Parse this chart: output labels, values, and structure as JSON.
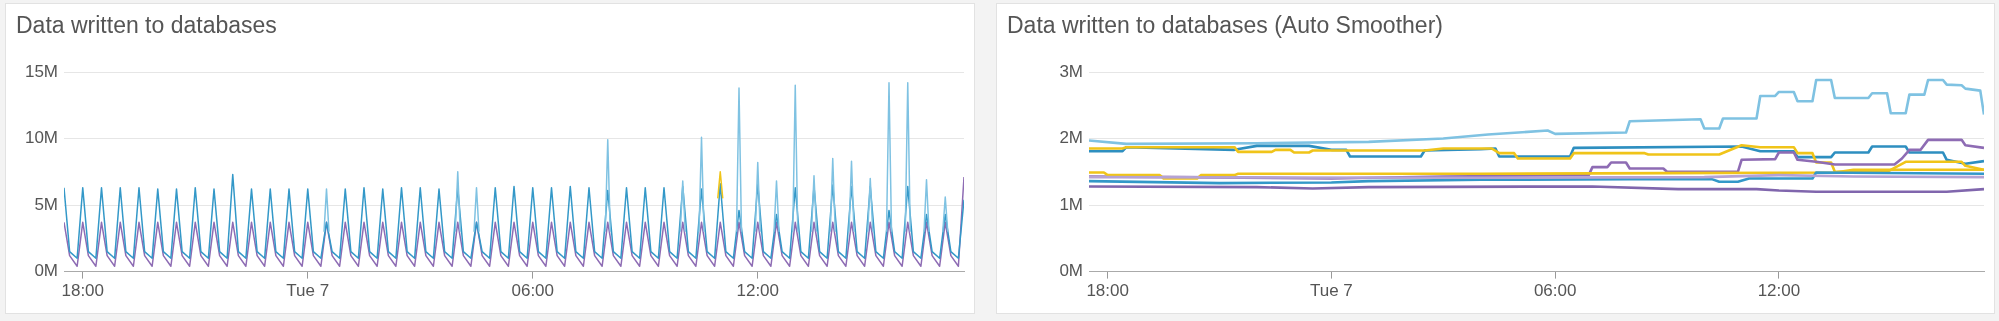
{
  "chart_data": [
    {
      "type": "line",
      "title": "Data written to databases",
      "xlim": [
        "--11-06T17:30",
        "--11-07T17:30"
      ],
      "xticks": [
        {
          "value": "--11-06T18:00",
          "label": "18:00"
        },
        {
          "value": "--11-07T00:00",
          "label": "Tue 7"
        },
        {
          "value": "--11-07T06:00",
          "label": "06:00"
        },
        {
          "value": "--11-07T12:00",
          "label": "12:00"
        }
      ],
      "ylim": [
        0,
        15
      ],
      "yticks": [
        {
          "value": 0,
          "label": "0M"
        },
        {
          "value": 5,
          "label": "5M"
        },
        {
          "value": 10,
          "label": "10M"
        },
        {
          "value": 15,
          "label": "15M"
        }
      ],
      "grid": "y",
      "x": [
        "--11-06T17:30",
        "--11-06T17:39",
        "--11-06T17:51",
        "--11-06T18:00",
        "--11-06T18:09",
        "--11-06T18:21",
        "--11-06T18:30",
        "--11-06T18:39",
        "--11-06T18:51",
        "--11-06T19:00",
        "--11-06T19:09",
        "--11-06T19:21",
        "--11-06T19:30",
        "--11-06T19:39",
        "--11-06T19:51",
        "--11-06T20:00",
        "--11-06T20:09",
        "--11-06T20:21",
        "--11-06T20:30",
        "--11-06T20:39",
        "--11-06T20:51",
        "--11-06T21:00",
        "--11-06T21:09",
        "--11-06T21:21",
        "--11-06T21:30",
        "--11-06T21:39",
        "--11-06T21:51",
        "--11-06T22:00",
        "--11-06T22:09",
        "--11-06T22:21",
        "--11-06T22:30",
        "--11-06T22:39",
        "--11-06T22:51",
        "--11-06T23:00",
        "--11-06T23:09",
        "--11-06T23:21",
        "--11-06T23:30",
        "--11-06T23:39",
        "--11-06T23:51",
        "--11-07T00:00",
        "--11-07T00:09",
        "--11-07T00:21",
        "--11-07T00:30",
        "--11-07T00:39",
        "--11-07T00:51",
        "--11-07T01:00",
        "--11-07T01:09",
        "--11-07T01:21",
        "--11-07T01:30",
        "--11-07T01:39",
        "--11-07T01:51",
        "--11-07T02:00",
        "--11-07T02:09",
        "--11-07T02:21",
        "--11-07T02:30",
        "--11-07T02:39",
        "--11-07T02:51",
        "--11-07T03:00",
        "--11-07T03:09",
        "--11-07T03:21",
        "--11-07T03:30",
        "--11-07T03:39",
        "--11-07T03:51",
        "--11-07T04:00",
        "--11-07T04:09",
        "--11-07T04:21",
        "--11-07T04:30",
        "--11-07T04:39",
        "--11-07T04:51",
        "--11-07T05:00",
        "--11-07T05:09",
        "--11-07T05:21",
        "--11-07T05:30",
        "--11-07T05:39",
        "--11-07T05:51",
        "--11-07T06:00",
        "--11-07T06:09",
        "--11-07T06:21",
        "--11-07T06:30",
        "--11-07T06:39",
        "--11-07T06:51",
        "--11-07T07:00",
        "--11-07T07:09",
        "--11-07T07:21",
        "--11-07T07:30",
        "--11-07T07:39",
        "--11-07T07:51",
        "--11-07T08:00",
        "--11-07T08:09",
        "--11-07T08:21",
        "--11-07T08:30",
        "--11-07T08:39",
        "--11-07T08:51",
        "--11-07T09:00",
        "--11-07T09:09",
        "--11-07T09:21",
        "--11-07T09:30",
        "--11-07T09:39",
        "--11-07T09:51",
        "--11-07T10:00",
        "--11-07T10:09",
        "--11-07T10:21",
        "--11-07T10:30",
        "--11-07T10:39",
        "--11-07T10:51",
        "--11-07T11:00",
        "--11-07T11:09",
        "--11-07T11:21",
        "--11-07T11:30",
        "--11-07T11:39",
        "--11-07T11:51",
        "--11-07T12:00",
        "--11-07T12:09",
        "--11-07T12:21",
        "--11-07T12:30",
        "--11-07T12:39",
        "--11-07T12:51",
        "--11-07T13:00",
        "--11-07T13:09",
        "--11-07T13:21",
        "--11-07T13:30",
        "--11-07T13:39",
        "--11-07T13:51",
        "--11-07T14:00",
        "--11-07T14:09",
        "--11-07T14:21",
        "--11-07T14:30",
        "--11-07T14:39",
        "--11-07T14:51",
        "--11-07T15:00",
        "--11-07T15:09",
        "--11-07T15:21",
        "--11-07T15:30",
        "--11-07T15:39",
        "--11-07T15:51",
        "--11-07T16:00",
        "--11-07T16:09",
        "--11-07T16:21",
        "--11-07T16:30",
        "--11-07T16:39",
        "--11-07T16:51",
        "--11-07T17:00",
        "--11-07T17:09",
        "--11-07T17:21",
        "--11-07T17:30"
      ],
      "series": [
        {
          "color": "#7fc2e2",
          "x": [
            "--11-07T00:26",
            "--11-07T00:30",
            "--11-07T00:34",
            "--11-07T00:45",
            "--11-07T03:56",
            "--11-07T04:00",
            "--11-07T04:04",
            "--11-07T04:15",
            "--11-07T04:26",
            "--11-07T04:30",
            "--11-07T04:34",
            "--11-07T04:45",
            "--11-07T07:56",
            "--11-07T08:00",
            "--11-07T08:04",
            "--11-07T08:15",
            "--11-07T09:56",
            "--11-07T10:00",
            "--11-07T10:04",
            "--11-07T10:15",
            "--11-07T10:26",
            "--11-07T10:30",
            "--11-07T10:34",
            "--11-07T10:45",
            "--11-07T11:26",
            "--11-07T11:30",
            "--11-07T11:34",
            "--11-07T11:45",
            "--11-07T11:56",
            "--11-07T12:00",
            "--11-07T12:04",
            "--11-07T12:15",
            "--11-07T12:26",
            "--11-07T12:30",
            "--11-07T12:34",
            "--11-07T12:45",
            "--11-07T12:56",
            "--11-07T13:00",
            "--11-07T13:04",
            "--11-07T13:15",
            "--11-07T13:26",
            "--11-07T13:30",
            "--11-07T13:34",
            "--11-07T13:45",
            "--11-07T13:56",
            "--11-07T14:00",
            "--11-07T14:04",
            "--11-07T14:15",
            "--11-07T14:26",
            "--11-07T14:30",
            "--11-07T14:34",
            "--11-07T14:45",
            "--11-07T14:56",
            "--11-07T15:00",
            "--11-07T15:04",
            "--11-07T15:15",
            "--11-07T15:26",
            "--11-07T15:30",
            "--11-07T15:34",
            "--11-07T15:45",
            "--11-07T15:56",
            "--11-07T16:00",
            "--11-07T16:04",
            "--11-07T16:15",
            "--11-07T16:26",
            "--11-07T16:30",
            "--11-07T16:34",
            "--11-07T16:45",
            "--11-07T16:56",
            "--11-07T17:00",
            "--11-07T17:04"
          ],
          "values": [
            3,
            6.2,
            3,
            null,
            3,
            7.5,
            3,
            null,
            3,
            6.3,
            3,
            null,
            3,
            9.9,
            3,
            null,
            3,
            6.8,
            3,
            null,
            3,
            10.1,
            3,
            null,
            3,
            13.8,
            3,
            null,
            3,
            8.2,
            3,
            null,
            3,
            6.8,
            3,
            null,
            3,
            14,
            3,
            null,
            3,
            7.2,
            3,
            null,
            3,
            8.5,
            3,
            null,
            3,
            8.3,
            3,
            null,
            3,
            7,
            3,
            null,
            3,
            14.2,
            3,
            null,
            3,
            14.2,
            3,
            null,
            3,
            6.9,
            3,
            null,
            3,
            5.6,
            3
          ]
        },
        {
          "color": "#f0c419",
          "x": [
            "--11-07T10:56",
            "--11-07T11:00",
            "--11-07T11:04"
          ],
          "values": [
            5.5,
            7.5,
            5.5
          ]
        },
        {
          "color": "#3398c8",
          "values": [
            6.3,
            1.5,
            1,
            6.3,
            1.5,
            1,
            6.3,
            1.5,
            1,
            6.3,
            1.5,
            1,
            6.3,
            1.5,
            1,
            6.2,
            1.5,
            1,
            6.2,
            1.5,
            1,
            6.3,
            1.5,
            1,
            6.2,
            1.5,
            1,
            7.3,
            1.5,
            1,
            6.2,
            1.5,
            1,
            6.2,
            1.5,
            1,
            6.2,
            1.5,
            1,
            6.2,
            1.5,
            1,
            3.7,
            1.5,
            1,
            6.2,
            1.5,
            1,
            6.3,
            1.5,
            1,
            6.2,
            1.5,
            1,
            6.3,
            1.5,
            1,
            6.3,
            1.5,
            1,
            6.2,
            1.5,
            1,
            6.3,
            1.5,
            1,
            3.7,
            1.5,
            1,
            6.3,
            1.5,
            1,
            6.4,
            1.5,
            1,
            6.3,
            1.5,
            1,
            6.3,
            1.5,
            1,
            6.4,
            1.5,
            1,
            6.3,
            1.5,
            1,
            6.1,
            1.5,
            1,
            6.3,
            1.5,
            1,
            6.3,
            1.5,
            1,
            6.3,
            1.5,
            1,
            6.4,
            1.5,
            1,
            6.2,
            1.5,
            1,
            6.6,
            1.5,
            1,
            4.6,
            1.5,
            1,
            6.6,
            1.5,
            1,
            4.3,
            1.5,
            1,
            6.3,
            1.5,
            1,
            6.4,
            1.5,
            1,
            6.5,
            1.5,
            1,
            6.4,
            1.5,
            1,
            6.4,
            1.5,
            1,
            4.6,
            1.5,
            1,
            6.4,
            1.5,
            1,
            4.3,
            1.5,
            1,
            4.3,
            1.5,
            1,
            5.4
          ]
        },
        {
          "color": "#8e6cb4",
          "values": [
            3.7,
            1.2,
            0.4,
            3.7,
            1.2,
            0.4,
            3.7,
            1.2,
            0.4,
            3.7,
            1.2,
            0.4,
            3.7,
            1.2,
            0.4,
            3.7,
            1.2,
            0.4,
            3.7,
            1.2,
            0.4,
            3.7,
            1.2,
            0.4,
            3.7,
            1.2,
            0.4,
            3.7,
            1.2,
            0.4,
            3.7,
            1.2,
            0.4,
            3.7,
            1.2,
            0.4,
            3.7,
            1.2,
            0.4,
            3.7,
            1.2,
            0.4,
            3.7,
            1.2,
            0.4,
            3.7,
            1.2,
            0.4,
            3.7,
            1.2,
            0.4,
            3.7,
            1.2,
            0.4,
            3.7,
            1.2,
            0.4,
            3.7,
            1.2,
            0.4,
            3.7,
            1.2,
            0.4,
            3.7,
            1.2,
            0.4,
            3.7,
            1.2,
            0.4,
            3.7,
            1.2,
            0.4,
            3.7,
            1.2,
            0.4,
            3.7,
            1.2,
            0.4,
            3.7,
            1.2,
            0.4,
            3.7,
            1.2,
            0.4,
            3.7,
            1.2,
            0.4,
            3.7,
            1.2,
            0.4,
            3.7,
            1.2,
            0.4,
            3.7,
            1.2,
            0.4,
            3.7,
            1.2,
            0.4,
            3.7,
            1.2,
            0.4,
            3.7,
            1.2,
            0.4,
            3.7,
            1.2,
            0.4,
            3.7,
            1.2,
            0.4,
            3.7,
            1.2,
            0.4,
            3.7,
            1.2,
            0.4,
            3.7,
            1.2,
            0.4,
            3.7,
            1.2,
            0.4,
            3.7,
            1.2,
            0.4,
            3.7,
            1.2,
            0.4,
            3.7,
            1.2,
            0.4,
            3.7,
            1.2,
            0.4,
            3.7,
            1.2,
            0.4,
            3.7,
            1.2,
            0.4,
            3.7,
            1.2,
            0.4,
            7.1
          ]
        }
      ]
    },
    {
      "type": "line",
      "title": "Data written to databases (Auto Smoother)",
      "xlim": [
        "--11-06T17:30",
        "--11-07T17:30"
      ],
      "xticks": [
        {
          "value": "--11-06T18:00",
          "label": "18:00"
        },
        {
          "value": "--11-07T00:00",
          "label": "Tue 7"
        },
        {
          "value": "--11-07T06:00",
          "label": "06:00"
        },
        {
          "value": "--11-07T12:00",
          "label": "12:00"
        }
      ],
      "ylim": [
        0,
        3
      ],
      "yticks": [
        {
          "value": 0,
          "label": "0M"
        },
        {
          "value": 1,
          "label": "1M"
        },
        {
          "value": 2,
          "label": "2M"
        },
        {
          "value": 3,
          "label": "3M"
        }
      ],
      "grid": "y",
      "series": [
        {
          "color": "#8066ad",
          "x": [
            "--11-06T17:30",
            "--11-06T22:00",
            "--11-06T23:30",
            "--11-07T01:00",
            "--11-07T07:00",
            "--11-07T09:18",
            "--11-07T11:24",
            "--11-07T12:00",
            "--11-07T13:00",
            "--11-07T16:30",
            "--11-07T17:30"
          ],
          "values": [
            1.28,
            1.27,
            1.25,
            1.27,
            1.28,
            1.24,
            1.24,
            1.22,
            1.2,
            1.2,
            1.24
          ]
        },
        {
          "color": "#b5a3d4",
          "x": [
            "--11-06T17:30",
            "--11-07T04:00",
            "--11-07T10:00",
            "--11-07T12:00",
            "--11-07T14:00",
            "--11-07T17:30"
          ],
          "values": [
            1.42,
            1.41,
            1.42,
            1.45,
            1.43,
            1.42
          ]
        },
        {
          "color": "#3398c8",
          "x": [
            "--11-06T17:30",
            "--11-06T21:00",
            "--11-07T00:00",
            "--11-07T01:00",
            "--11-07T04:00",
            "--11-07T08:00",
            "--11-07T10:12",
            "--11-07T10:24",
            "--11-07T10:54",
            "--11-07T11:12",
            "--11-07T12:54",
            "--11-07T13:00",
            "--11-07T17:30"
          ],
          "values": [
            1.36,
            1.33,
            1.34,
            1.36,
            1.38,
            1.39,
            1.39,
            1.35,
            1.35,
            1.4,
            1.4,
            1.49,
            1.47
          ]
        },
        {
          "color": "#f0c419",
          "x": [
            "--11-06T17:30",
            "--11-06T17:54",
            "--11-06T18:00",
            "--11-06T19:24",
            "--11-06T19:30",
            "--11-06T20:24",
            "--11-06T20:30",
            "--11-06T21:24",
            "--11-06T21:30",
            "--11-07T04:00",
            "--11-07T09:00",
            "--11-07T13:30",
            "--11-07T14:00",
            "--11-07T17:30"
          ],
          "values": [
            1.49,
            1.49,
            1.45,
            1.45,
            1.4,
            1.4,
            1.45,
            1.45,
            1.47,
            1.47,
            1.48,
            1.49,
            1.53,
            1.53
          ]
        },
        {
          "color": "#8e6cb4",
          "x": [
            "--11-06T17:30",
            "--11-06T20:00",
            "--11-07T00:00",
            "--11-07T03:00",
            "--11-07T06:54",
            "--11-07T07:00",
            "--11-07T07:24",
            "--11-07T07:30",
            "--11-07T07:54",
            "--11-07T08:00",
            "--11-07T08:54",
            "--11-07T09:00",
            "--11-07T10:54",
            "--11-07T11:00",
            "--11-07T11:54",
            "--11-07T12:00",
            "--11-07T12:24",
            "--11-07T12:30",
            "--11-07T13:00",
            "--11-07T13:30",
            "--11-07T15:06",
            "--11-07T15:18",
            "--11-07T15:30",
            "--11-07T15:48",
            "--11-07T16:00",
            "--11-07T16:54",
            "--11-07T17:00",
            "--11-07T17:30"
          ],
          "values": [
            1.43,
            1.42,
            1.4,
            1.43,
            1.45,
            1.57,
            1.57,
            1.64,
            1.64,
            1.55,
            1.55,
            1.5,
            1.5,
            1.68,
            1.69,
            1.79,
            1.79,
            1.68,
            1.65,
            1.61,
            1.61,
            1.7,
            1.83,
            1.83,
            1.98,
            1.98,
            1.9,
            1.86
          ]
        },
        {
          "color": "#f0c419",
          "x": [
            "--11-06T17:30",
            "--11-06T18:24",
            "--11-06T18:30",
            "--11-06T21:24",
            "--11-06T21:30",
            "--11-06T22:24",
            "--11-06T22:30",
            "--11-06T22:54",
            "--11-06T23:00",
            "--11-06T23:24",
            "--11-06T23:30",
            "--11-07T02:30",
            "--11-07T03:00",
            "--11-07T04:18",
            "--11-07T04:30",
            "--11-07T04:54",
            "--11-07T05:00",
            "--11-07T06:24",
            "--11-07T06:30",
            "--11-07T08:24",
            "--11-07T08:30",
            "--11-07T10:24",
            "--11-07T11:00",
            "--11-07T11:30",
            "--11-07T12:24",
            "--11-07T12:30",
            "--11-07T12:54",
            "--11-07T13:00",
            "--11-07T13:24",
            "--11-07T13:30",
            "--11-07T14:54",
            "--11-07T15:24",
            "--11-07T16:54",
            "--11-07T17:00",
            "--11-07T17:30"
          ],
          "values": [
            1.85,
            1.85,
            1.87,
            1.87,
            1.8,
            1.8,
            1.83,
            1.83,
            1.79,
            1.79,
            1.82,
            1.82,
            1.85,
            1.85,
            1.78,
            1.78,
            1.7,
            1.7,
            1.78,
            1.78,
            1.76,
            1.76,
            1.9,
            1.87,
            1.87,
            1.78,
            1.78,
            1.64,
            1.64,
            1.5,
            1.5,
            1.65,
            1.65,
            1.59,
            1.53
          ]
        },
        {
          "color": "#2e8fc0",
          "x": [
            "--11-06T17:30",
            "--11-06T18:24",
            "--11-06T18:30",
            "--11-06T21:24",
            "--11-06T22:00",
            "--11-06T23:24",
            "--11-07T00:00",
            "--11-07T00:24",
            "--11-07T00:30",
            "--11-07T02:24",
            "--11-07T02:30",
            "--11-07T04:00",
            "--11-07T04:24",
            "--11-07T04:30",
            "--11-07T06:24",
            "--11-07T06:30",
            "--11-07T11:00",
            "--11-07T11:30",
            "--11-07T12:24",
            "--11-07T12:30",
            "--11-07T13:24",
            "--11-07T13:30",
            "--11-07T14:24",
            "--11-07T14:30",
            "--11-07T15:24",
            "--11-07T15:30",
            "--11-07T16:24",
            "--11-07T16:30",
            "--11-07T17:00",
            "--11-07T17:30"
          ],
          "values": [
            1.81,
            1.81,
            1.87,
            1.83,
            1.89,
            1.89,
            1.83,
            1.83,
            1.73,
            1.73,
            1.82,
            1.84,
            1.85,
            1.73,
            1.73,
            1.86,
            1.88,
            1.81,
            1.81,
            1.72,
            1.72,
            1.79,
            1.79,
            1.88,
            1.88,
            1.79,
            1.79,
            1.68,
            1.62,
            1.66
          ]
        },
        {
          "color": "#7fc2e2",
          "x": [
            "--11-06T17:30",
            "--11-06T18:30",
            "--11-06T22:00",
            "--11-07T01:00",
            "--11-07T03:00",
            "--11-07T04:12",
            "--11-07T05:48",
            "--11-07T06:00",
            "--11-07T07:54",
            "--11-07T08:00",
            "--11-07T09:54",
            "--11-07T10:00",
            "--11-07T10:24",
            "--11-07T10:30",
            "--11-07T11:24",
            "--11-07T11:30",
            "--11-07T11:54",
            "--11-07T12:00",
            "--11-07T12:24",
            "--11-07T12:30",
            "--11-07T12:54",
            "--11-07T13:00",
            "--11-07T13:24",
            "--11-07T13:30",
            "--11-07T14:24",
            "--11-07T14:30",
            "--11-07T14:54",
            "--11-07T15:00",
            "--11-07T15:24",
            "--11-07T15:30",
            "--11-07T15:54",
            "--11-07T16:00",
            "--11-07T16:24",
            "--11-07T16:30",
            "--11-07T16:54",
            "--11-07T17:00",
            "--11-07T17:24",
            "--11-07T17:30"
          ],
          "values": [
            1.97,
            1.92,
            1.93,
            1.95,
            2,
            2.06,
            2.12,
            2.07,
            2.09,
            2.26,
            2.29,
            2.15,
            2.15,
            2.3,
            2.3,
            2.64,
            2.64,
            2.7,
            2.7,
            2.56,
            2.56,
            2.88,
            2.88,
            2.61,
            2.61,
            2.68,
            2.68,
            2.38,
            2.38,
            2.66,
            2.66,
            2.88,
            2.88,
            2.81,
            2.8,
            2.75,
            2.72,
            2.36
          ]
        }
      ]
    }
  ]
}
